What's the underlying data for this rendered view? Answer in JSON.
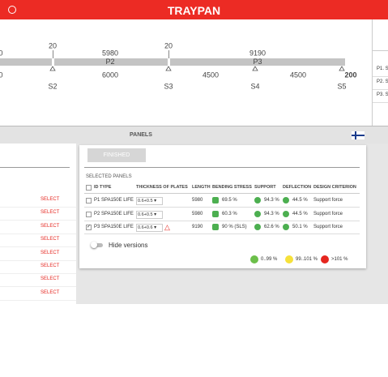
{
  "header": {
    "title": "TRAYPAN"
  },
  "diagram": {
    "markers": [
      "20",
      "20"
    ],
    "top_values": [
      "0",
      "5980",
      "9190"
    ],
    "panels": [
      "P2",
      "P3"
    ],
    "spans": [
      "0",
      "6000",
      "4500",
      "4500"
    ],
    "end_value": "200",
    "supports": [
      "S2",
      "S3",
      "S4",
      "S5"
    ]
  },
  "side_list": [
    "P1. S",
    "P2. S",
    "P3. S"
  ],
  "section_title": "PANELS",
  "left_list": [
    "SELECT",
    "SELECT",
    "SELECT",
    "SELECT",
    "SELECT",
    "SELECT",
    "SELECT",
    "SELECT"
  ],
  "card": {
    "button": "FINISHED",
    "heading": "SELECTED PANELS",
    "columns": [
      "ID TYPE",
      "THICKNESS OF PLATES",
      "LENGTH",
      "BENDING STRESS",
      "SUPPORT",
      "DEFLECTION",
      "DESIGN CRITERION"
    ],
    "rows": [
      {
        "checked": false,
        "id_type": "P1 SPA150E LIFE",
        "thickness": "0.6+0.5",
        "length": "5980",
        "bending": "69.5 %",
        "support": "94.3 %",
        "deflection": "44.5 %",
        "criterion": "Support force"
      },
      {
        "checked": false,
        "id_type": "P2 SPA150E LIFE",
        "thickness": "0.6+0.5",
        "length": "5980",
        "bending": "60.3 %",
        "support": "94.3 %",
        "deflection": "44.5 %",
        "criterion": "Support force"
      },
      {
        "checked": true,
        "id_type": "P3 SPA150E LIFE",
        "thickness": "0.6+0.6",
        "length": "9190",
        "bending": "90 % (SLS)",
        "support": "62.6 %",
        "deflection": "50.1 %",
        "criterion": "Support force"
      }
    ],
    "toggle": "Hide versions",
    "legend": [
      {
        "label": "0..99 %",
        "color": "#6cbf4a"
      },
      {
        "label": "99..101 %",
        "color": "#f6e13a"
      },
      {
        "label": ">101 %",
        "color": "#e5261f"
      }
    ]
  }
}
